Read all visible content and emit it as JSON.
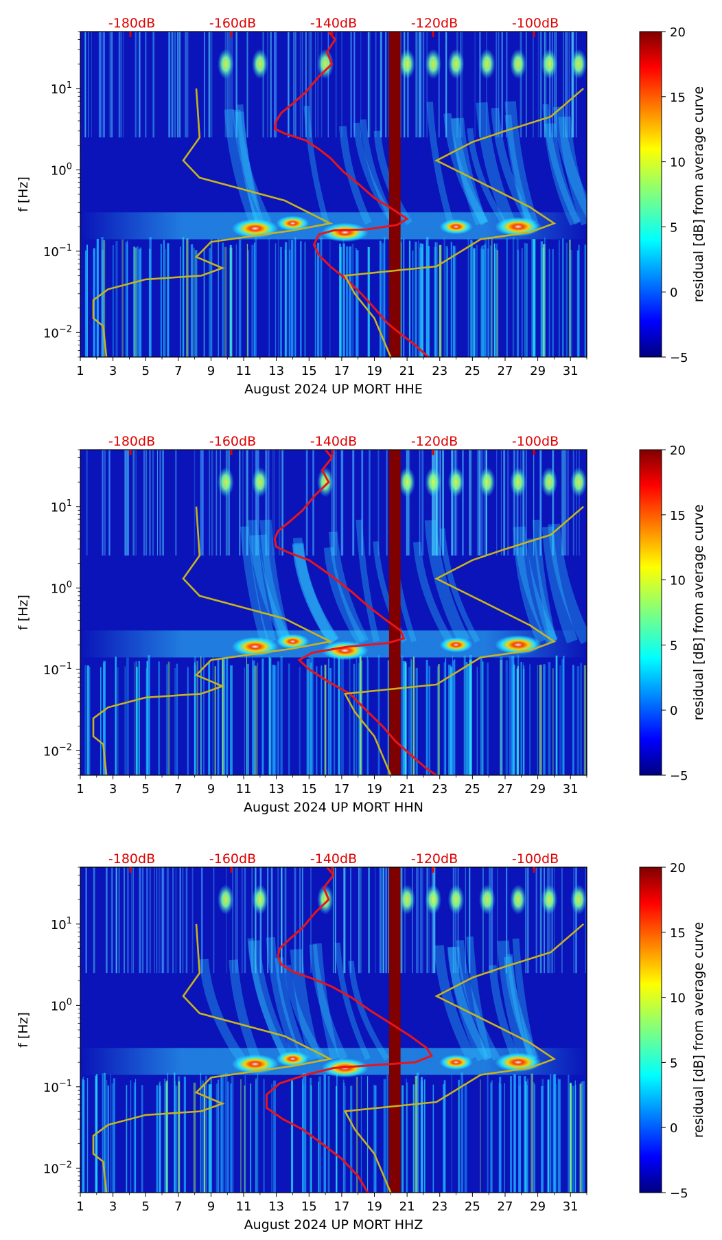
{
  "chart_data": [
    {
      "type": "heatmap",
      "title": "",
      "xlabel": "August 2024 UP MORT  HHE",
      "ylabel": "f [Hz]",
      "x_ticks": [
        "1",
        "3",
        "5",
        "7",
        "9",
        "11",
        "13",
        "15",
        "17",
        "19",
        "21",
        "23",
        "25",
        "27",
        "29",
        "31"
      ],
      "x_range": [
        1,
        32
      ],
      "y_range": [
        0.005,
        50
      ],
      "y_ticks": [
        {
          "base": "10",
          "exp": "1",
          "value": 10
        },
        {
          "base": "10",
          "exp": "0",
          "value": 1
        },
        {
          "base": "10",
          "exp": "−1",
          "value": 0.1
        },
        {
          "base": "10",
          "exp": "−2",
          "value": 0.01
        }
      ],
      "db_labels": [
        "-180dB",
        "-160dB",
        "-140dB",
        "-120dB",
        "-100dB"
      ],
      "colorbar": {
        "label": "residual [dB] from average curve",
        "range": [
          -5,
          20
        ],
        "ticks": [
          "20",
          "15",
          "10",
          "5",
          "0",
          "−5"
        ]
      },
      "gap_day": 20.25,
      "series": [
        {
          "name": "daily PSD (red)",
          "color": "#e8141c",
          "points": [
            [
              16.2,
              50
            ],
            [
              16.6,
              40
            ],
            [
              16.1,
              28
            ],
            [
              16.4,
              20
            ],
            [
              15.6,
              14
            ],
            [
              14.8,
              9
            ],
            [
              14.0,
              6.5
            ],
            [
              13.3,
              5
            ],
            [
              13.0,
              4
            ],
            [
              12.9,
              3.2
            ],
            [
              13.5,
              2.8
            ],
            [
              14.8,
              2.3
            ],
            [
              15.6,
              1.8
            ],
            [
              16.3,
              1.4
            ],
            [
              17.1,
              0.95
            ],
            [
              18.1,
              0.65
            ],
            [
              19.0,
              0.45
            ],
            [
              20.2,
              0.32
            ],
            [
              21.0,
              0.25
            ],
            [
              20.4,
              0.21
            ],
            [
              18.5,
              0.185
            ],
            [
              16.5,
              0.18
            ],
            [
              15.6,
              0.16
            ],
            [
              15.3,
              0.12
            ],
            [
              15.6,
              0.09
            ],
            [
              16.3,
              0.065
            ],
            [
              17.3,
              0.045
            ],
            [
              18.2,
              0.03
            ],
            [
              19.0,
              0.02
            ],
            [
              19.8,
              0.013
            ],
            [
              20.5,
              0.01
            ],
            [
              21.5,
              0.007
            ],
            [
              22.3,
              0.005
            ]
          ]
        },
        {
          "name": "noise model (yellow)",
          "color": "#c8b41e",
          "points": [
            [
              8.1,
              10
            ],
            [
              8.3,
              2.5
            ],
            [
              7.3,
              1.3
            ],
            [
              8.3,
              0.8
            ],
            [
              13.5,
              0.42
            ],
            [
              16.3,
              0.22
            ],
            [
              14.0,
              0.18
            ],
            [
              9.0,
              0.13
            ],
            [
              8.1,
              0.085
            ],
            [
              9.7,
              0.062
            ],
            [
              8.4,
              0.05
            ],
            [
              5.0,
              0.045
            ],
            [
              2.7,
              0.034
            ],
            [
              1.8,
              0.025
            ],
            [
              1.8,
              0.015
            ],
            [
              2.4,
              0.012
            ],
            [
              2.6,
              0.005
            ]
          ]
        },
        {
          "name": "noise model (yellow) right",
          "color": "#c8b41e",
          "points": [
            [
              31.8,
              10
            ],
            [
              29.8,
              4.5
            ],
            [
              27.0,
              3.0
            ],
            [
              25.0,
              2.2
            ],
            [
              22.8,
              1.3
            ],
            [
              25.5,
              0.7
            ],
            [
              28.5,
              0.35
            ],
            [
              30.0,
              0.22
            ],
            [
              28.5,
              0.17
            ],
            [
              25.5,
              0.14
            ],
            [
              22.8,
              0.065
            ],
            [
              17.2,
              0.05
            ],
            [
              17.8,
              0.03
            ],
            [
              19.0,
              0.015
            ],
            [
              20.0,
              0.005
            ]
          ]
        }
      ]
    },
    {
      "type": "heatmap",
      "title": "",
      "xlabel": "August 2024 UP MORT  HHN",
      "ylabel": "f [Hz]",
      "x_ticks": [
        "1",
        "3",
        "5",
        "7",
        "9",
        "11",
        "13",
        "15",
        "17",
        "19",
        "21",
        "23",
        "25",
        "27",
        "29",
        "31"
      ],
      "x_range": [
        1,
        32
      ],
      "y_range": [
        0.005,
        50
      ],
      "y_ticks": [
        {
          "base": "10",
          "exp": "1",
          "value": 10
        },
        {
          "base": "10",
          "exp": "0",
          "value": 1
        },
        {
          "base": "10",
          "exp": "−1",
          "value": 0.1
        },
        {
          "base": "10",
          "exp": "−2",
          "value": 0.01
        }
      ],
      "db_labels": [
        "-180dB",
        "-160dB",
        "-140dB",
        "-120dB",
        "-100dB"
      ],
      "colorbar": {
        "label": "residual [dB] from average curve",
        "range": [
          -5,
          20
        ],
        "ticks": [
          "20",
          "15",
          "10",
          "5",
          "0",
          "−5"
        ]
      },
      "gap_day": 20.25,
      "series": [
        {
          "name": "daily PSD (red)",
          "color": "#e8141c",
          "points": [
            [
              16.0,
              50
            ],
            [
              16.4,
              40
            ],
            [
              15.8,
              28
            ],
            [
              16.2,
              20
            ],
            [
              15.4,
              14
            ],
            [
              14.6,
              9
            ],
            [
              13.8,
              6.5
            ],
            [
              13.1,
              5
            ],
            [
              12.9,
              4
            ],
            [
              13.0,
              3.2
            ],
            [
              13.8,
              2.7
            ],
            [
              15.0,
              2.2
            ],
            [
              15.8,
              1.7
            ],
            [
              16.6,
              1.3
            ],
            [
              17.6,
              0.9
            ],
            [
              18.6,
              0.6
            ],
            [
              19.6,
              0.42
            ],
            [
              20.6,
              0.3
            ],
            [
              20.8,
              0.24
            ],
            [
              19.8,
              0.21
            ],
            [
              17.4,
              0.19
            ],
            [
              15.2,
              0.16
            ],
            [
              14.4,
              0.13
            ],
            [
              15.0,
              0.1
            ],
            [
              16.2,
              0.07
            ],
            [
              17.5,
              0.05
            ],
            [
              18.6,
              0.03
            ],
            [
              19.5,
              0.02
            ],
            [
              20.3,
              0.013
            ],
            [
              21.2,
              0.009
            ],
            [
              22.2,
              0.006
            ],
            [
              22.8,
              0.005
            ]
          ]
        },
        {
          "name": "noise model (yellow)",
          "color": "#c8b41e",
          "points": [
            [
              8.1,
              10
            ],
            [
              8.3,
              2.5
            ],
            [
              7.3,
              1.3
            ],
            [
              8.3,
              0.8
            ],
            [
              13.5,
              0.42
            ],
            [
              16.3,
              0.22
            ],
            [
              14.0,
              0.18
            ],
            [
              9.0,
              0.13
            ],
            [
              8.1,
              0.085
            ],
            [
              9.7,
              0.062
            ],
            [
              8.4,
              0.05
            ],
            [
              5.0,
              0.045
            ],
            [
              2.7,
              0.034
            ],
            [
              1.8,
              0.025
            ],
            [
              1.8,
              0.015
            ],
            [
              2.4,
              0.012
            ],
            [
              2.6,
              0.005
            ]
          ]
        },
        {
          "name": "noise model (yellow) right",
          "color": "#c8b41e",
          "points": [
            [
              31.8,
              10
            ],
            [
              29.8,
              4.5
            ],
            [
              27.0,
              3.0
            ],
            [
              25.0,
              2.2
            ],
            [
              22.8,
              1.3
            ],
            [
              25.5,
              0.7
            ],
            [
              28.5,
              0.35
            ],
            [
              30.0,
              0.22
            ],
            [
              28.5,
              0.17
            ],
            [
              25.5,
              0.14
            ],
            [
              22.8,
              0.065
            ],
            [
              17.2,
              0.05
            ],
            [
              17.8,
              0.03
            ],
            [
              19.0,
              0.015
            ],
            [
              20.0,
              0.005
            ]
          ]
        }
      ]
    },
    {
      "type": "heatmap",
      "title": "",
      "xlabel": "August 2024 UP MORT  HHZ",
      "ylabel": "f [Hz]",
      "x_ticks": [
        "1",
        "3",
        "5",
        "7",
        "9",
        "11",
        "13",
        "15",
        "17",
        "19",
        "21",
        "23",
        "25",
        "27",
        "29",
        "31"
      ],
      "x_range": [
        1,
        32
      ],
      "y_range": [
        0.005,
        50
      ],
      "y_ticks": [
        {
          "base": "10",
          "exp": "1",
          "value": 10
        },
        {
          "base": "10",
          "exp": "0",
          "value": 1
        },
        {
          "base": "10",
          "exp": "−1",
          "value": 0.1
        },
        {
          "base": "10",
          "exp": "−2",
          "value": 0.01
        }
      ],
      "db_labels": [
        "-180dB",
        "-160dB",
        "-140dB",
        "-120dB",
        "-100dB"
      ],
      "colorbar": {
        "label": "residual [dB] from average curve",
        "range": [
          -5,
          20
        ],
        "ticks": [
          "20",
          "15",
          "10",
          "5",
          "0",
          "−5"
        ]
      },
      "gap_day": 20.25,
      "series": [
        {
          "name": "daily PSD (red)",
          "color": "#e8141c",
          "points": [
            [
              16.1,
              50
            ],
            [
              16.5,
              40
            ],
            [
              15.9,
              28
            ],
            [
              16.2,
              20
            ],
            [
              15.4,
              14
            ],
            [
              14.6,
              9
            ],
            [
              13.8,
              6.5
            ],
            [
              13.2,
              5
            ],
            [
              13.1,
              4
            ],
            [
              13.3,
              3.2
            ],
            [
              14.0,
              2.6
            ],
            [
              15.3,
              2.1
            ],
            [
              16.4,
              1.7
            ],
            [
              17.6,
              1.25
            ],
            [
              18.8,
              0.85
            ],
            [
              20.0,
              0.6
            ],
            [
              21.2,
              0.42
            ],
            [
              22.2,
              0.3
            ],
            [
              22.5,
              0.24
            ],
            [
              21.5,
              0.2
            ],
            [
              19.0,
              0.185
            ],
            [
              16.5,
              0.17
            ],
            [
              14.8,
              0.14
            ],
            [
              13.2,
              0.11
            ],
            [
              12.4,
              0.08
            ],
            [
              12.4,
              0.055
            ],
            [
              13.4,
              0.04
            ],
            [
              14.6,
              0.03
            ],
            [
              15.8,
              0.02
            ],
            [
              17.0,
              0.013
            ],
            [
              18.0,
              0.008
            ],
            [
              18.6,
              0.005
            ]
          ]
        },
        {
          "name": "noise model (yellow)",
          "color": "#c8b41e",
          "points": [
            [
              8.1,
              10
            ],
            [
              8.3,
              2.5
            ],
            [
              7.3,
              1.3
            ],
            [
              8.3,
              0.8
            ],
            [
              13.5,
              0.42
            ],
            [
              16.3,
              0.22
            ],
            [
              14.0,
              0.18
            ],
            [
              9.0,
              0.13
            ],
            [
              8.1,
              0.085
            ],
            [
              9.7,
              0.062
            ],
            [
              8.4,
              0.05
            ],
            [
              5.0,
              0.045
            ],
            [
              2.7,
              0.034
            ],
            [
              1.8,
              0.025
            ],
            [
              1.8,
              0.015
            ],
            [
              2.4,
              0.012
            ],
            [
              2.6,
              0.005
            ]
          ]
        },
        {
          "name": "noise model (yellow) right",
          "color": "#c8b41e",
          "points": [
            [
              31.8,
              10
            ],
            [
              29.8,
              4.5
            ],
            [
              27.0,
              3.0
            ],
            [
              25.0,
              2.2
            ],
            [
              22.8,
              1.3
            ],
            [
              25.5,
              0.7
            ],
            [
              28.5,
              0.35
            ],
            [
              30.0,
              0.22
            ],
            [
              28.5,
              0.17
            ],
            [
              25.5,
              0.14
            ],
            [
              22.8,
              0.065
            ],
            [
              17.2,
              0.05
            ],
            [
              17.8,
              0.03
            ],
            [
              19.0,
              0.015
            ],
            [
              20.0,
              0.005
            ]
          ]
        }
      ]
    }
  ]
}
